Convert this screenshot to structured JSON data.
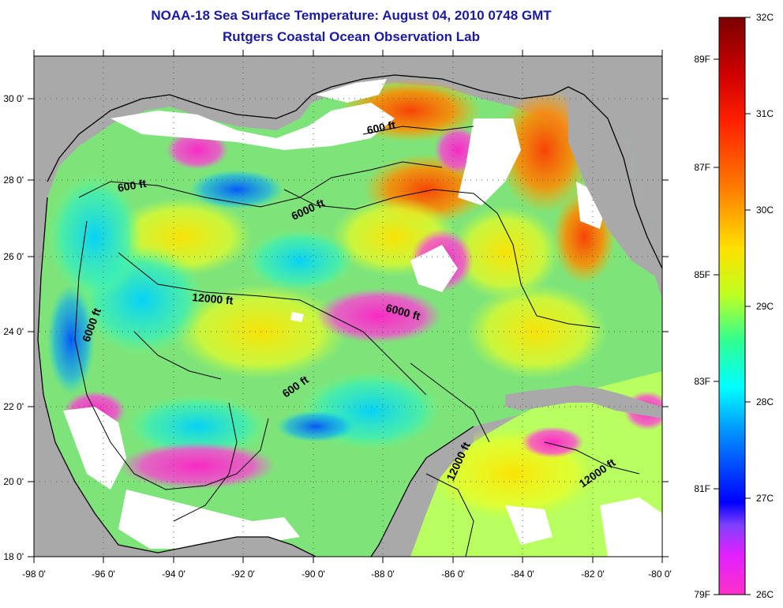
{
  "title": {
    "line1": "NOAA-18 Sea Surface Temperature:  August 04, 2010 0748 GMT",
    "line2": "Rutgers Coastal Ocean Observation Lab"
  },
  "map": {
    "region": "Gulf of Mexico",
    "lon_range": [
      -98,
      -80
    ],
    "lat_range": [
      18,
      31
    ],
    "lon_ticks": [
      "-98 0'",
      "-96 0'",
      "-94 0'",
      "-92 0'",
      "-90 0'",
      "-88 0'",
      "-86 0'",
      "-84 0'",
      "-82 0'",
      "-80 0'"
    ],
    "lat_ticks": [
      "18 0'",
      "20 0'",
      "22 0'",
      "24 0'",
      "26 0'",
      "28 0'",
      "30 0'"
    ],
    "colors": {
      "land": "#a9a9a9",
      "cloud": "#ffffff",
      "contour": "#000000"
    },
    "contour_labels": [
      "600 ft",
      "600 ft",
      "6000 ft",
      "12000 ft",
      "6000 ft",
      "6000 ft",
      "600 ft",
      "12000 ft",
      "12000 ft"
    ]
  },
  "colorbar": {
    "celsius_ticks": [
      "32C",
      "31C",
      "30C",
      "29C",
      "28C",
      "27C",
      "26C"
    ],
    "fahrenheit_ticks": [
      "89F",
      "87F",
      "85F",
      "83F",
      "81F",
      "79F"
    ],
    "gradient_stops": [
      "#7a0000",
      "#ff0000",
      "#ff8000",
      "#ffff00",
      "#00ff80",
      "#00ffff",
      "#0080ff",
      "#0000ff",
      "#8000ff",
      "#ff00ff"
    ]
  }
}
